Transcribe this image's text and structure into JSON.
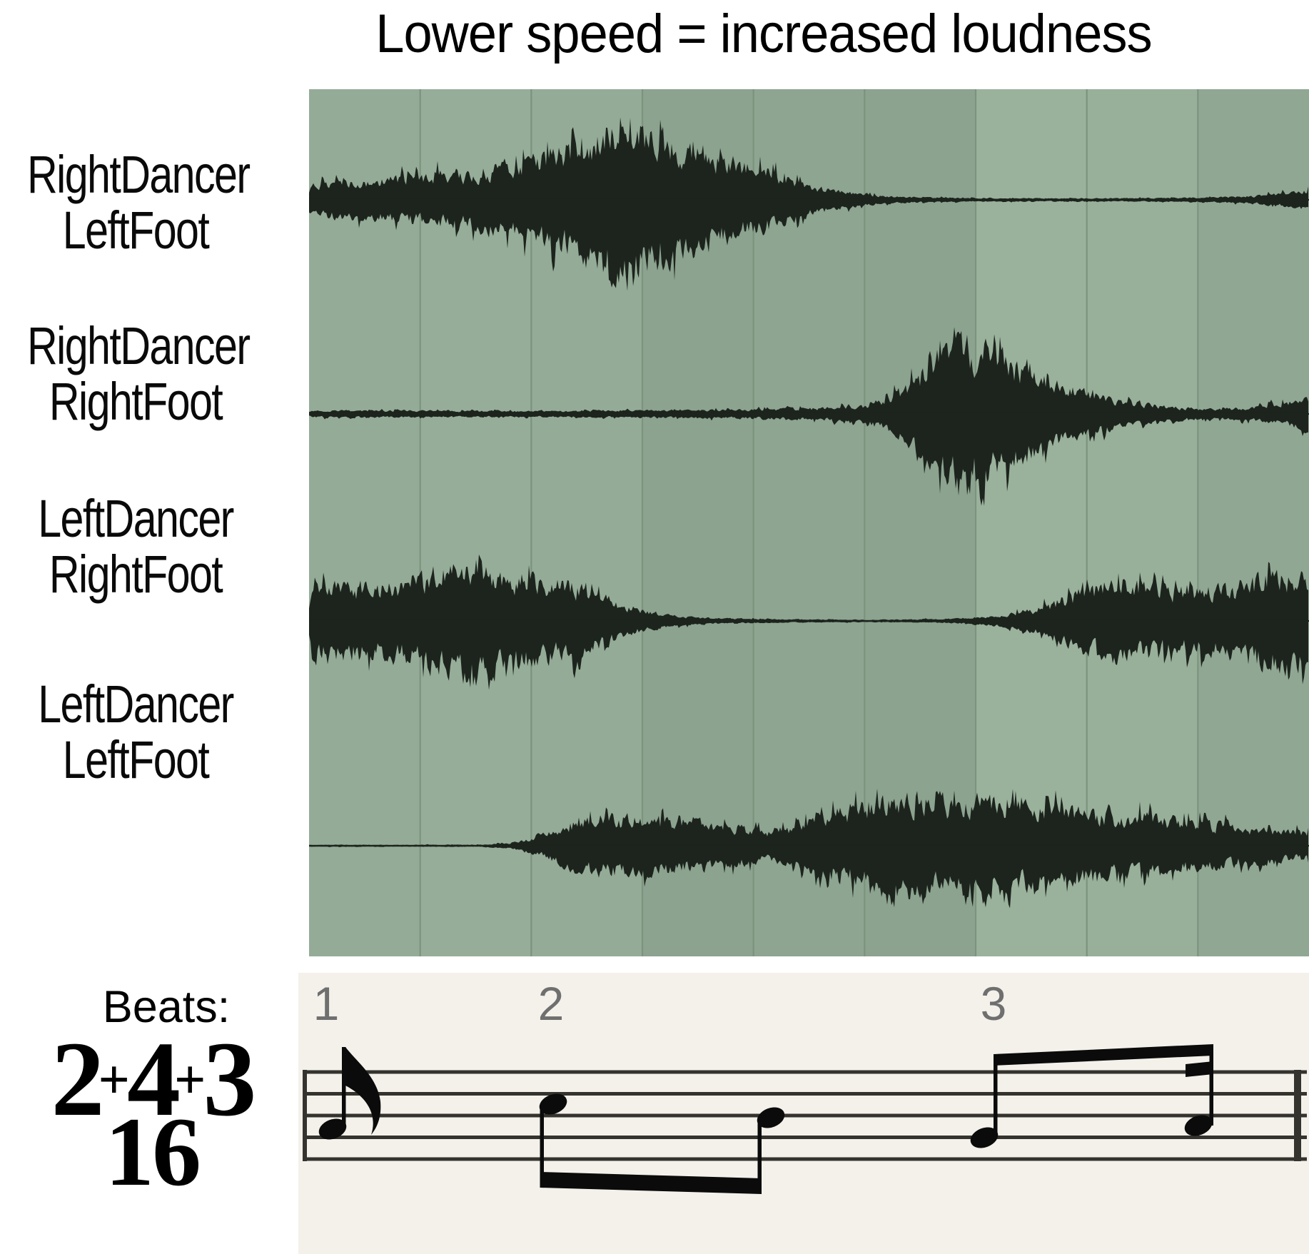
{
  "title": "Lower speed = increased loudness",
  "beats_label": "Beats:",
  "beat_numbers": [
    "1",
    "2",
    "3"
  ],
  "time_signature": {
    "parts": [
      "2",
      "4",
      "3"
    ],
    "plus": "+",
    "denominator": "16"
  },
  "tracks": [
    {
      "name": "RightDancer LeftFoot",
      "label_lines": [
        "RightDancer",
        "LeftFoot"
      ]
    },
    {
      "name": "RightDancer RightFoot",
      "label_lines": [
        "RightDancer",
        "RightFoot"
      ]
    },
    {
      "name": "LeftDancer RightFoot",
      "label_lines": [
        "LeftDancer",
        "RightFoot"
      ]
    },
    {
      "name": "LeftDancer LeftFoot",
      "label_lines": [
        "LeftDancer",
        "LeftFoot"
      ]
    }
  ],
  "colors": {
    "page_background": "#ffffff",
    "panel_columns": [
      "#94ac97",
      "#96ae99",
      "#94ac97",
      "#8ba38f",
      "#8da591",
      "#8ba38f",
      "#9ab29c",
      "#98b09a",
      "#90a893"
    ],
    "gridline": "#7c937e",
    "waveform": "#1d231d",
    "staff_background": "#f3f1ea",
    "staff_line": "#35332e",
    "note": "#0b0b0b",
    "beat_number": "#6f6f6f",
    "text": "#000000"
  },
  "chart_data": {
    "type": "area",
    "title": "Lower speed = increased loudness",
    "x_unit": "sixteenth-note position (0 to 9)",
    "grid_divisions": 9,
    "beat_start_positions": [
      0,
      2,
      6
    ],
    "beat_labels": [
      "1",
      "2",
      "3"
    ],
    "legend_position": "left",
    "series": [
      {
        "name": "RightDancer LeftFoot",
        "envelope": [
          [
            0,
            0.22
          ],
          [
            0.5,
            0.25
          ],
          [
            1,
            0.3
          ],
          [
            1.5,
            0.38
          ],
          [
            2,
            0.52
          ],
          [
            2.4,
            0.72
          ],
          [
            2.7,
            1.0
          ],
          [
            3,
            0.88
          ],
          [
            3.4,
            0.7
          ],
          [
            3.8,
            0.52
          ],
          [
            4.2,
            0.34
          ],
          [
            4.6,
            0.16
          ],
          [
            5,
            0.07
          ],
          [
            5.4,
            0.035
          ],
          [
            6,
            0.025
          ],
          [
            7,
            0.02
          ],
          [
            8,
            0.03
          ],
          [
            8.5,
            0.05
          ],
          [
            9,
            0.13
          ]
        ]
      },
      {
        "name": "RightDancer RightFoot",
        "envelope": [
          [
            0,
            0.05
          ],
          [
            1,
            0.045
          ],
          [
            2,
            0.04
          ],
          [
            3,
            0.05
          ],
          [
            4,
            0.065
          ],
          [
            4.6,
            0.08
          ],
          [
            5,
            0.12
          ],
          [
            5.3,
            0.3
          ],
          [
            5.6,
            0.72
          ],
          [
            5.85,
            1.0
          ],
          [
            6.15,
            0.82
          ],
          [
            6.5,
            0.55
          ],
          [
            6.9,
            0.32
          ],
          [
            7.3,
            0.18
          ],
          [
            7.7,
            0.1
          ],
          [
            8.1,
            0.07
          ],
          [
            8.5,
            0.09
          ],
          [
            8.8,
            0.16
          ],
          [
            9,
            0.2
          ]
        ]
      },
      {
        "name": "LeftDancer RightFoot",
        "envelope": [
          [
            0,
            0.55
          ],
          [
            0.3,
            0.62
          ],
          [
            0.6,
            0.55
          ],
          [
            0.9,
            0.68
          ],
          [
            1.2,
            0.82
          ],
          [
            1.5,
            1.0
          ],
          [
            1.8,
            0.78
          ],
          [
            2.1,
            0.66
          ],
          [
            2.4,
            0.56
          ],
          [
            2.7,
            0.36
          ],
          [
            3,
            0.17
          ],
          [
            3.3,
            0.08
          ],
          [
            3.7,
            0.045
          ],
          [
            4.2,
            0.03
          ],
          [
            5,
            0.02
          ],
          [
            5.7,
            0.03
          ],
          [
            6.1,
            0.07
          ],
          [
            6.5,
            0.18
          ],
          [
            6.9,
            0.45
          ],
          [
            7.2,
            0.66
          ],
          [
            7.5,
            0.6
          ],
          [
            7.9,
            0.52
          ],
          [
            8.3,
            0.58
          ],
          [
            8.7,
            0.78
          ],
          [
            8.9,
            0.85
          ],
          [
            9,
            0.75
          ]
        ]
      },
      {
        "name": "LeftDancer LeftFoot",
        "envelope": [
          [
            0,
            0.02
          ],
          [
            1.5,
            0.02
          ],
          [
            1.8,
            0.05
          ],
          [
            2.1,
            0.22
          ],
          [
            2.4,
            0.5
          ],
          [
            2.7,
            0.58
          ],
          [
            3,
            0.54
          ],
          [
            3.4,
            0.48
          ],
          [
            3.8,
            0.4
          ],
          [
            4.1,
            0.3
          ],
          [
            4.4,
            0.42
          ],
          [
            4.7,
            0.65
          ],
          [
            5,
            0.85
          ],
          [
            5.3,
            1.0
          ],
          [
            5.6,
            0.92
          ],
          [
            5.9,
            0.85
          ],
          [
            6.2,
            0.9
          ],
          [
            6.5,
            0.82
          ],
          [
            6.9,
            0.72
          ],
          [
            7.3,
            0.62
          ],
          [
            7.7,
            0.56
          ],
          [
            8.1,
            0.46
          ],
          [
            8.5,
            0.36
          ],
          [
            9,
            0.27
          ]
        ]
      }
    ],
    "notation": {
      "time_signature": "2+4+3/16",
      "beats": [
        {
          "beat": 1,
          "sixteenths": 2,
          "notes": [
            "eighth"
          ],
          "beam": "none (flag)"
        },
        {
          "beat": 2,
          "sixteenths": 4,
          "notes": [
            "eighth",
            "eighth"
          ],
          "beam": "below staff"
        },
        {
          "beat": 3,
          "sixteenths": 3,
          "notes": [
            "eighth",
            "sixteenth"
          ],
          "beam": "above staff"
        }
      ]
    }
  }
}
